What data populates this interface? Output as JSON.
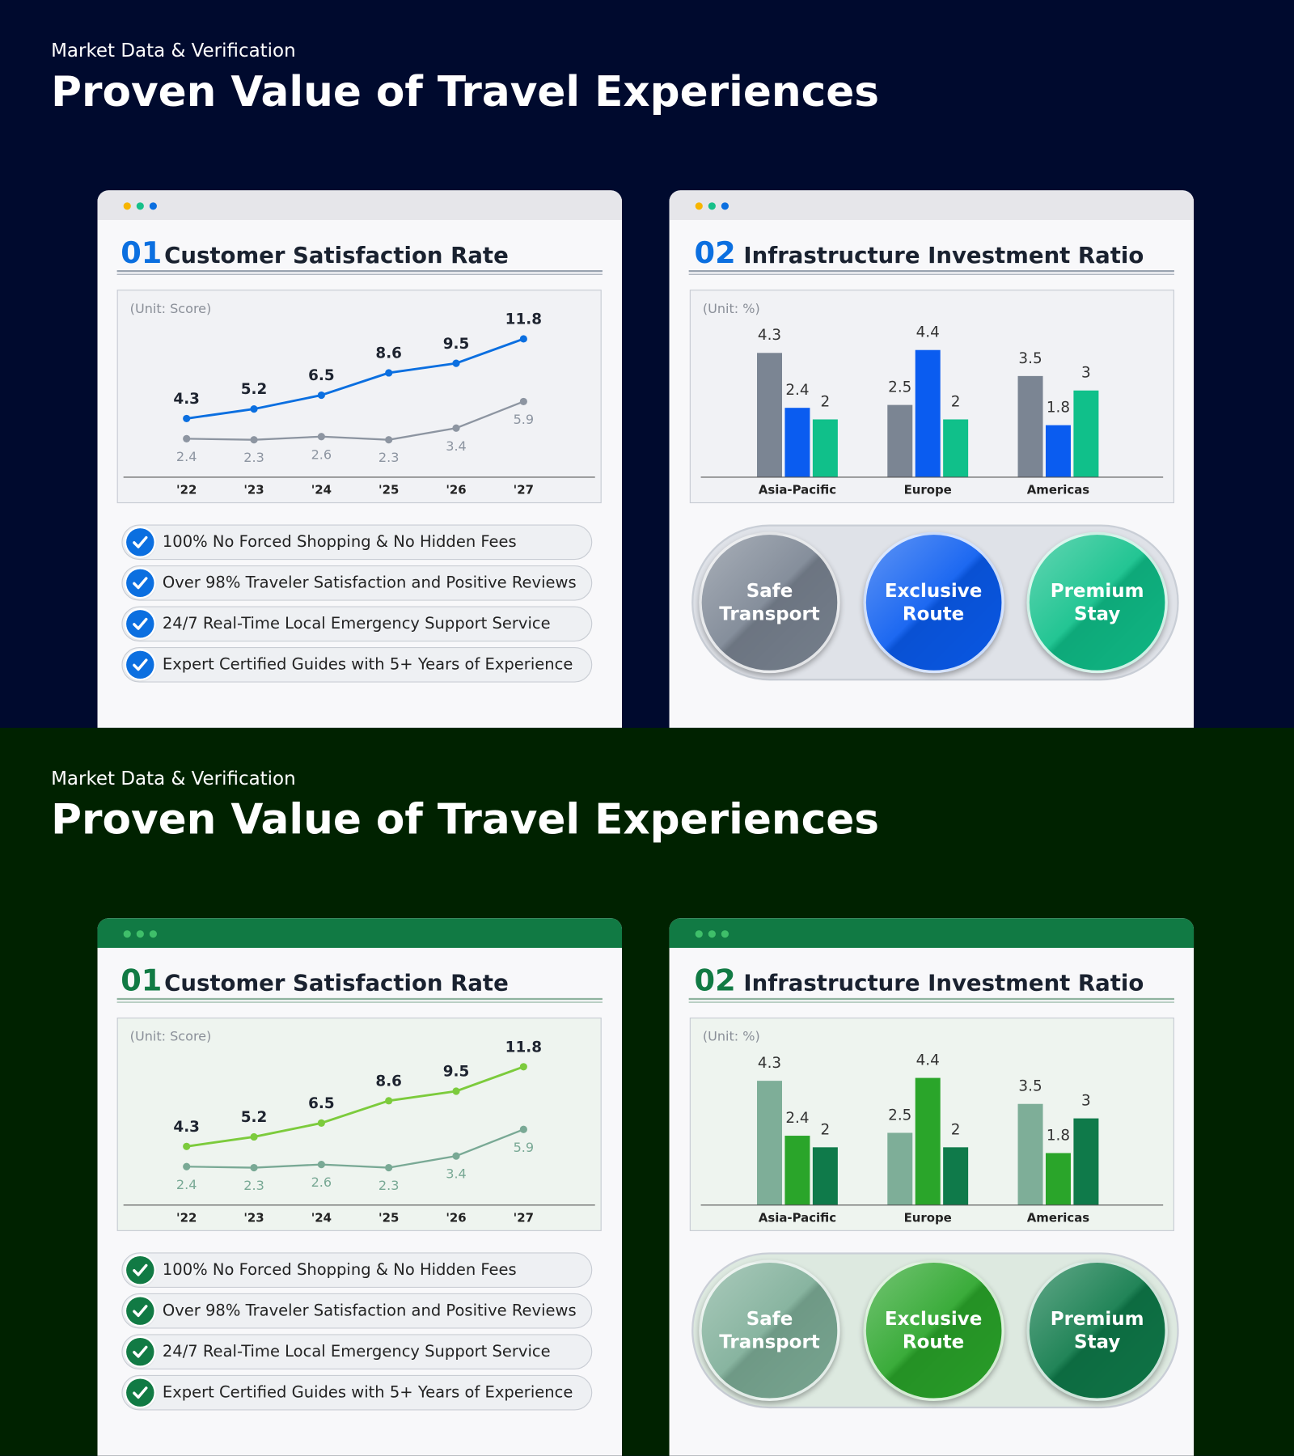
{
  "panels": [
    {
      "eyebrow": "Market Data & Verification",
      "title": "Proven Value of Travel Experiences",
      "card1": {
        "number": "01",
        "title": "Customer Satisfaction Rate",
        "features": [
          "100% No Forced Shopping & No Hidden Fees",
          "Over 98% Traveler Satisfaction and Positive Reviews",
          "24/7 Real-Time Local Emergency Support Service",
          "Expert Certified Guides with 5+ Years of Experience"
        ]
      },
      "card2": {
        "number": "02",
        "title": "Infrastructure Investment Ratio"
      }
    },
    {
      "eyebrow": "Market Data & Verification",
      "title": "Proven Value of Travel Experiences",
      "card1": {
        "number": "01",
        "title": "Customer Satisfaction Rate",
        "features": [
          "100% No Forced Shopping & No Hidden Fees",
          "Over 98% Traveler Satisfaction and Positive Reviews",
          "24/7 Real-Time Local Emergency Support Service",
          "Expert Certified Guides with 5+ Years of Experience"
        ]
      },
      "card2": {
        "number": "02",
        "title": "Infrastructure Investment Ratio"
      }
    }
  ],
  "chart_data": [
    {
      "type": "line",
      "unit": "(Unit: Score)",
      "categories": [
        "'22",
        "'23",
        "'24",
        "'25",
        "'26",
        "'27"
      ],
      "series": [
        {
          "color": "#0b6fe0",
          "values": [
            4.3,
            5.2,
            6.5,
            8.6,
            9.5,
            11.8
          ]
        },
        {
          "color": "#8d95a1",
          "values": [
            2.4,
            2.3,
            2.6,
            2.3,
            3.4,
            5.9
          ]
        }
      ]
    },
    {
      "type": "bar",
      "unit": "(Unit: %)",
      "categories": [
        "Asia-Pacific",
        "Europe",
        "Americas"
      ],
      "series": [
        {
          "name": "Safe Transport",
          "color": "#7b8593",
          "values": [
            4.3,
            2.5,
            3.5
          ]
        },
        {
          "name": "Exclusive Route",
          "color": "#0a5cf0",
          "values": [
            2.4,
            4.4,
            1.8
          ]
        },
        {
          "name": "Premium Stay",
          "color": "#10c08a",
          "values": [
            2,
            2,
            3
          ]
        }
      ]
    },
    {
      "type": "line",
      "unit": "(Unit: Score)",
      "categories": [
        "'22",
        "'23",
        "'24",
        "'25",
        "'26",
        "'27"
      ],
      "series": [
        {
          "color": "#7ccb3c",
          "values": [
            4.3,
            5.2,
            6.5,
            8.6,
            9.5,
            11.8
          ]
        },
        {
          "color": "#79a995",
          "values": [
            2.4,
            2.3,
            2.6,
            2.3,
            3.4,
            5.9
          ]
        }
      ]
    },
    {
      "type": "bar",
      "unit": "(Unit: %)",
      "categories": [
        "Asia-Pacific",
        "Europe",
        "Americas"
      ],
      "series": [
        {
          "name": "Safe Transport",
          "color": "#7eae98",
          "values": [
            4.3,
            2.5,
            3.5
          ]
        },
        {
          "name": "Exclusive Route",
          "color": "#2aa52a",
          "values": [
            2.4,
            4.4,
            1.8
          ]
        },
        {
          "name": "Premium Stay",
          "color": "#0f7a4a",
          "values": [
            2,
            2,
            3
          ]
        }
      ]
    }
  ]
}
